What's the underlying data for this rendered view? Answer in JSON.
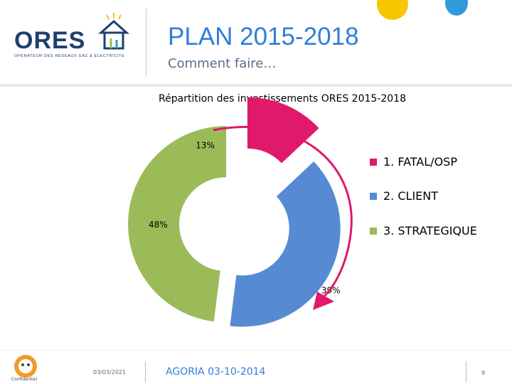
{
  "header": {
    "logo_word": "ORES",
    "logo_tagline": "OPERATEUR DES RESEAUX GAZ & ELECTRICITE",
    "title": "PLAN 2015-2018",
    "subtitle": "Comment faire…"
  },
  "chart_data": {
    "type": "pie",
    "title": "Répartition des investissements ORES 2015-2018",
    "categories": [
      "1. FATAL/OSP",
      "2. CLIENT",
      "3. STRATEGIQUE"
    ],
    "values": [
      13,
      39,
      48
    ],
    "data_labels": [
      "13%",
      "39%",
      "48%"
    ],
    "colors": [
      "#e0196b",
      "#568bd4",
      "#9bbb59"
    ],
    "legend_position": "right",
    "style": "exploded doughnut"
  },
  "decor": {
    "arrow_color": "#e0196b",
    "accent_yellow": "#f7c600",
    "accent_blue": "#2f9bd8"
  },
  "footer": {
    "date": "03/03/2021",
    "event": "AGORIA 03-10-2014",
    "page": "9",
    "badge_label": "Confidentiel"
  }
}
